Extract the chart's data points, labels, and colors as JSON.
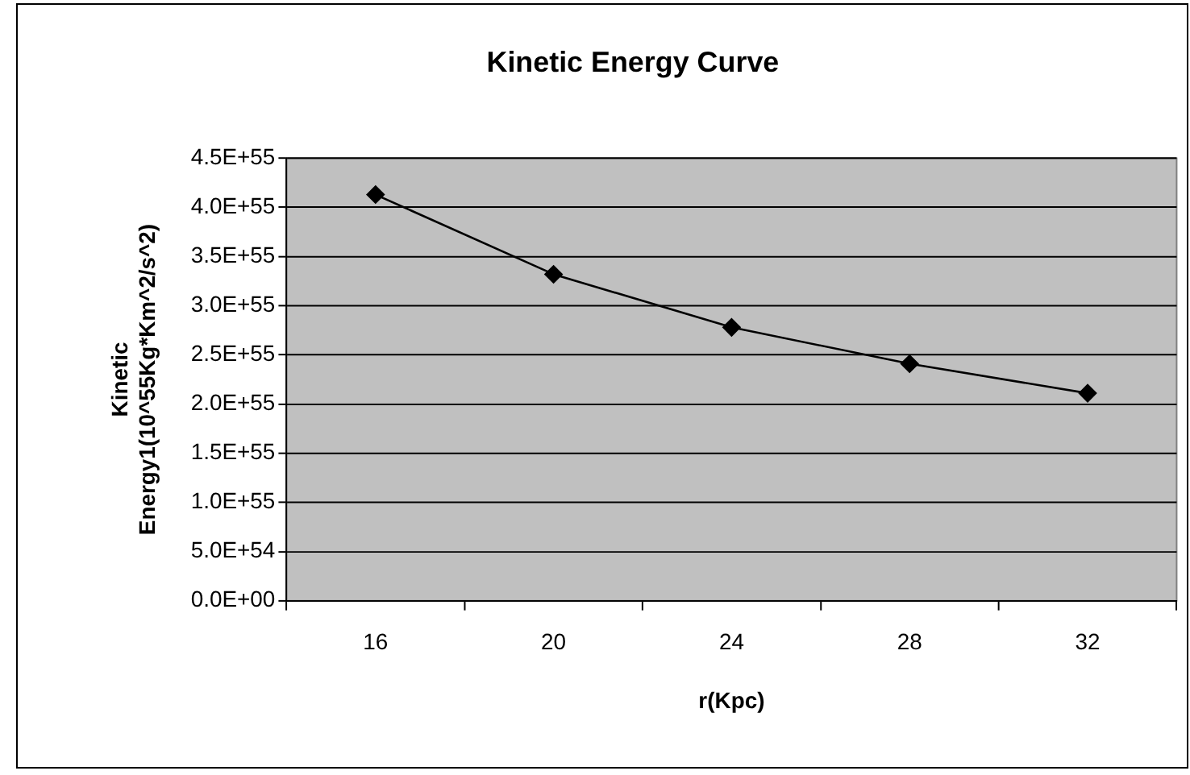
{
  "chart_data": {
    "type": "line",
    "title": "Kinetic Energy Curve",
    "xlabel": "r(Kpc)",
    "ylabel": "Kinetic Energy1(10^55Kg*Km^2/s^2)",
    "categories": [
      "16",
      "20",
      "24",
      "28",
      "32"
    ],
    "series": [
      {
        "color": "#000000",
        "values": [
          4.13e+55,
          3.32e+55,
          2.78e+55,
          2.41e+55,
          2.11e+55
        ]
      }
    ],
    "ylim": [
      0,
      4.5e+55
    ],
    "yticks": [
      {
        "value": 0,
        "label": "0.0E+00"
      },
      {
        "value": 5e+54,
        "label": "5.0E+54"
      },
      {
        "value": 1e+55,
        "label": "1.0E+55"
      },
      {
        "value": 1.5e+55,
        "label": "1.5E+55"
      },
      {
        "value": 2e+55,
        "label": "2.0E+55"
      },
      {
        "value": 2.5e+55,
        "label": "2.5E+55"
      },
      {
        "value": 3e+55,
        "label": "3.0E+55"
      },
      {
        "value": 3.5e+55,
        "label": "3.5E+55"
      },
      {
        "value": 4e+55,
        "label": "4.0E+55"
      },
      {
        "value": 4.5e+55,
        "label": "4.5E+55"
      }
    ],
    "grid": "y",
    "marker": "diamond",
    "line_style": "solid",
    "legend": false
  }
}
